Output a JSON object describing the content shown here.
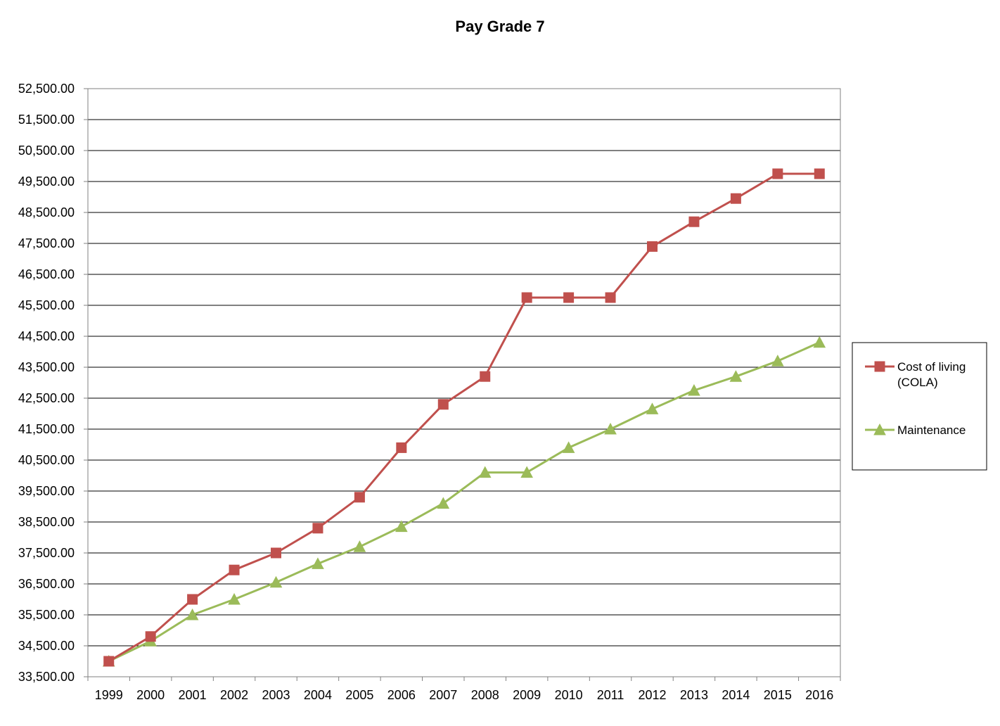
{
  "chart_data": {
    "type": "line",
    "title": "Pay Grade 7",
    "xlabel": "",
    "ylabel": "",
    "categories": [
      "1999",
      "2000",
      "2001",
      "2002",
      "2003",
      "2004",
      "2005",
      "2006",
      "2007",
      "2008",
      "2009",
      "2010",
      "2011",
      "2012",
      "2013",
      "2014",
      "2015",
      "2016"
    ],
    "y_ticks": [
      "33,500.00",
      "34,500.00",
      "35,500.00",
      "36,500.00",
      "37,500.00",
      "38,500.00",
      "39,500.00",
      "40,500.00",
      "41,500.00",
      "42,500.00",
      "43,500.00",
      "44,500.00",
      "45,500.00",
      "46,500.00",
      "47,500.00",
      "48,500.00",
      "49,500.00",
      "50,500.00",
      "51,500.00",
      "52,500.00"
    ],
    "ylim": [
      33500,
      52500
    ],
    "grid": "horizontal",
    "legend_position": "right",
    "series": [
      {
        "name_lines": [
          "Cost of living",
          "(COLA)"
        ],
        "marker": "square",
        "color": "#c0504d",
        "values": [
          34000,
          34800,
          36000,
          36950,
          37500,
          38300,
          39300,
          40900,
          42300,
          43200,
          45750,
          45750,
          45750,
          47400,
          48200,
          48950,
          49750,
          49750
        ]
      },
      {
        "name_lines": [
          "Maintenance"
        ],
        "marker": "triangle",
        "color": "#9bbb59",
        "values": [
          34000,
          34650,
          35500,
          36000,
          36550,
          37150,
          37700,
          38350,
          39100,
          40100,
          40100,
          40900,
          41500,
          42150,
          42750,
          43200,
          43700,
          44300
        ]
      }
    ]
  }
}
